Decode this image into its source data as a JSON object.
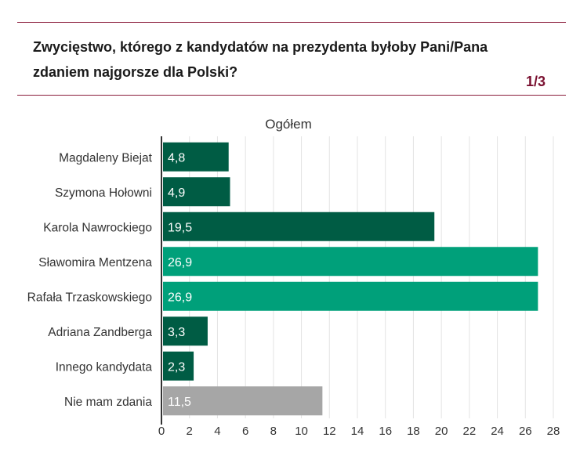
{
  "header": {
    "question": "Zwycięstwo, którego z kandydatów na prezydenta byłoby Pani/Pana zdaniem najgorsze dla Polski?",
    "page": "1/3"
  },
  "colors": {
    "rule": "#8a1c3a",
    "page_indicator": "#7a1030",
    "bar_dark": "#005c44",
    "bar_highlight": "#00a07a",
    "bar_neutral": "#a6a6a6",
    "grid": "#e3e3e3",
    "axis": "#333333"
  },
  "chart_data": {
    "type": "bar",
    "orientation": "horizontal",
    "title": "Ogółem",
    "categories": [
      "Magdaleny Biejat",
      "Szymona Hołowni",
      "Karola Nawrockiego",
      "Sławomira Mentzena",
      "Rafała Trzaskowskiego",
      "Adriana Zandberga",
      "Innego kandydata",
      "Nie mam zdania"
    ],
    "values": [
      4.8,
      4.9,
      19.5,
      26.9,
      26.9,
      3.3,
      2.3,
      11.5
    ],
    "value_labels": [
      "4,8",
      "4,9",
      "19,5",
      "26,9",
      "26,9",
      "3,3",
      "2,3",
      "11,5"
    ],
    "bar_styles": [
      "dark",
      "dark",
      "dark",
      "highlight",
      "highlight",
      "dark",
      "dark",
      "neutral"
    ],
    "xlim": [
      0,
      28
    ],
    "xticks": [
      0,
      2,
      4,
      6,
      8,
      10,
      12,
      14,
      16,
      18,
      20,
      22,
      24,
      26,
      28
    ],
    "grid": true,
    "xlabel": "",
    "ylabel": ""
  }
}
